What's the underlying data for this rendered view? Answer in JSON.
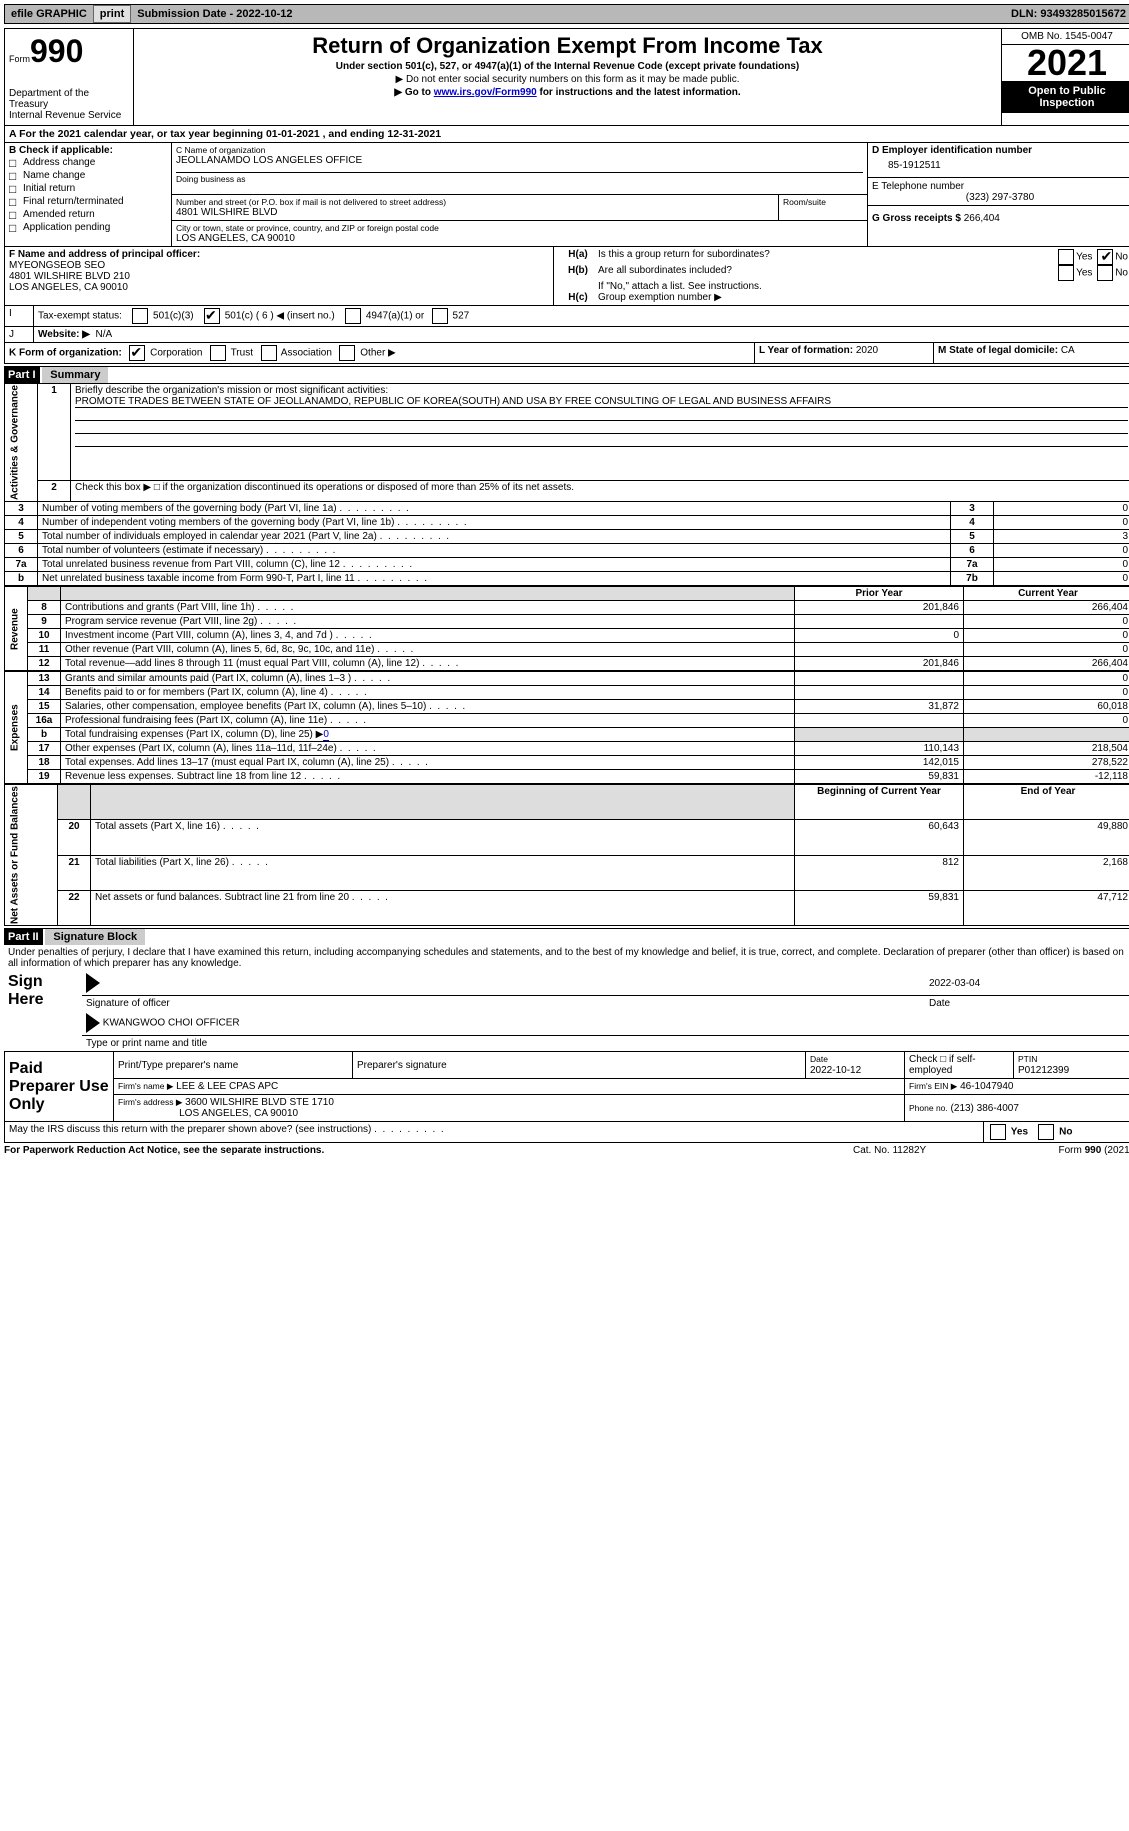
{
  "topbar": {
    "efile_label": "efile GRAPHIC",
    "print_btn": "print",
    "submission_label": "Submission Date - 2022-10-12",
    "dln": "DLN: 93493285015672"
  },
  "header": {
    "form_word": "Form",
    "form_number": "990",
    "dept1": "Department of the Treasury",
    "dept2": "Internal Revenue Service",
    "title": "Return of Organization Exempt From Income Tax",
    "subtitle": "Under section 501(c), 527, or 4947(a)(1) of the Internal Revenue Code (except private foundations)",
    "note1": "▶ Do not enter social security numbers on this form as it may be made public.",
    "note2_pre": "▶ Go to ",
    "note2_link": "www.irs.gov/Form990",
    "note2_post": " for instructions and the latest information.",
    "omb": "OMB No. 1545-0047",
    "year": "2021",
    "open_inspect": "Open to Public Inspection"
  },
  "line_a": "For the 2021 calendar year, or tax year beginning 01-01-2021   , and ending 12-31-2021",
  "section_b": {
    "header": "B Check if applicable:",
    "items": [
      "Address change",
      "Name change",
      "Initial return",
      "Final return/terminated",
      "Amended return",
      "Application pending"
    ]
  },
  "section_c": {
    "name_label": "C Name of organization",
    "name": "JEOLLANAMDO LOS ANGELES OFFICE",
    "dba_label": "Doing business as",
    "street_label": "Number and street (or P.O. box if mail is not delivered to street address)",
    "room_label": "Room/suite",
    "street": "4801 WILSHIRE BLVD",
    "city_label": "City or town, state or province, country, and ZIP or foreign postal code",
    "city": "LOS ANGELES, CA  90010"
  },
  "section_d": {
    "ein_label": "D Employer identification number",
    "ein": "85-1912511",
    "phone_label": "E Telephone number",
    "phone": "(323) 297-3780",
    "gross_label": "G Gross receipts $",
    "gross": "266,404"
  },
  "section_f": {
    "label": "F Name and address of principal officer:",
    "name": "MYEONGSEOB SEO",
    "addr1": "4801 WILSHIRE BLVD 210",
    "addr2": "LOS ANGELES, CA  90010"
  },
  "section_h": {
    "ha": "Is this a group return for subordinates?",
    "hb": "Are all subordinates included?",
    "hb_note": "If \"No,\" attach a list. See instructions.",
    "hc": "Group exemption number ▶",
    "ha_no_checked": true
  },
  "line_i": {
    "label": "Tax-exempt status:",
    "opt1": "501(c)(3)",
    "opt2_pre": "501(c) ( 6 ) ◀ (insert no.)",
    "opt3": "4947(a)(1) or",
    "opt4": "527",
    "opt2_checked": true
  },
  "line_j": {
    "label": "Website: ▶",
    "value": "N/A"
  },
  "line_k": {
    "label": "K Form of organization:",
    "corp": "Corporation",
    "trust": "Trust",
    "assoc": "Association",
    "other": "Other ▶",
    "corp_checked": true
  },
  "line_l": {
    "label": "L Year of formation:",
    "value": "2020"
  },
  "line_m": {
    "label": "M State of legal domicile:",
    "value": "CA"
  },
  "part1": {
    "bar": "Part I",
    "title": "Summary",
    "q1_label": "Briefly describe the organization's mission or most significant activities:",
    "q1_text": "PROMOTE TRADES BETWEEN STATE OF JEOLLANAMDO, REPUBLIC OF KOREA(SOUTH) AND USA BY FREE CONSULTING OF LEGAL AND BUSINESS AFFAIRS",
    "q2": "Check this box ▶ □ if the organization discontinued its operations or disposed of more than 25% of its net assets.",
    "side_ag": "Activities & Governance",
    "side_rev": "Revenue",
    "side_exp": "Expenses",
    "side_na": "Net Assets or Fund Balances",
    "prior_year": "Prior Year",
    "current_year": "Current Year",
    "beg_year": "Beginning of Current Year",
    "end_year": "End of Year",
    "rows_gov": [
      {
        "n": "3",
        "t": "Number of voting members of the governing body (Part VI, line 1a)",
        "box": "3",
        "v": "0"
      },
      {
        "n": "4",
        "t": "Number of independent voting members of the governing body (Part VI, line 1b)",
        "box": "4",
        "v": "0"
      },
      {
        "n": "5",
        "t": "Total number of individuals employed in calendar year 2021 (Part V, line 2a)",
        "box": "5",
        "v": "3"
      },
      {
        "n": "6",
        "t": "Total number of volunteers (estimate if necessary)",
        "box": "6",
        "v": "0"
      },
      {
        "n": "7a",
        "t": "Total unrelated business revenue from Part VIII, column (C), line 12",
        "box": "7a",
        "v": "0"
      },
      {
        "n": "b",
        "t": "Net unrelated business taxable income from Form 990-T, Part I, line 11",
        "box": "7b",
        "v": "0"
      }
    ],
    "rows_rev": [
      {
        "n": "8",
        "t": "Contributions and grants (Part VIII, line 1h)",
        "p": "201,846",
        "c": "266,404"
      },
      {
        "n": "9",
        "t": "Program service revenue (Part VIII, line 2g)",
        "p": "",
        "c": "0"
      },
      {
        "n": "10",
        "t": "Investment income (Part VIII, column (A), lines 3, 4, and 7d )",
        "p": "0",
        "c": "0"
      },
      {
        "n": "11",
        "t": "Other revenue (Part VIII, column (A), lines 5, 6d, 8c, 9c, 10c, and 11e)",
        "p": "",
        "c": "0"
      },
      {
        "n": "12",
        "t": "Total revenue—add lines 8 through 11 (must equal Part VIII, column (A), line 12)",
        "p": "201,846",
        "c": "266,404"
      }
    ],
    "rows_exp": [
      {
        "n": "13",
        "t": "Grants and similar amounts paid (Part IX, column (A), lines 1–3 )",
        "p": "",
        "c": "0"
      },
      {
        "n": "14",
        "t": "Benefits paid to or for members (Part IX, column (A), line 4)",
        "p": "",
        "c": "0"
      },
      {
        "n": "15",
        "t": "Salaries, other compensation, employee benefits (Part IX, column (A), lines 5–10)",
        "p": "31,872",
        "c": "60,018"
      },
      {
        "n": "16a",
        "t": "Professional fundraising fees (Part IX, column (A), line 11e)",
        "p": "",
        "c": "0"
      },
      {
        "n": "b",
        "t": "Total fundraising expenses (Part IX, column (D), line 25) ▶",
        "link": "0",
        "p": "shade",
        "c": "shade"
      },
      {
        "n": "17",
        "t": "Other expenses (Part IX, column (A), lines 11a–11d, 11f–24e)",
        "p": "110,143",
        "c": "218,504"
      },
      {
        "n": "18",
        "t": "Total expenses. Add lines 13–17 (must equal Part IX, column (A), line 25)",
        "p": "142,015",
        "c": "278,522"
      },
      {
        "n": "19",
        "t": "Revenue less expenses. Subtract line 18 from line 12",
        "p": "59,831",
        "c": "-12,118"
      }
    ],
    "rows_na": [
      {
        "n": "20",
        "t": "Total assets (Part X, line 16)",
        "p": "60,643",
        "c": "49,880"
      },
      {
        "n": "21",
        "t": "Total liabilities (Part X, line 26)",
        "p": "812",
        "c": "2,168"
      },
      {
        "n": "22",
        "t": "Net assets or fund balances. Subtract line 21 from line 20",
        "p": "59,831",
        "c": "47,712"
      }
    ]
  },
  "part2": {
    "bar": "Part II",
    "title": "Signature Block",
    "decl": "Under penalties of perjury, I declare that I have examined this return, including accompanying schedules and statements, and to the best of my knowledge and belief, it is true, correct, and complete. Declaration of preparer (other than officer) is based on all information of which preparer has any knowledge.",
    "sign_here": "Sign Here",
    "sig_officer": "Signature of officer",
    "sig_date": "2022-03-04",
    "date_label": "Date",
    "officer_name": "KWANGWOO CHOI  OFFICER",
    "type_name": "Type or print name and title",
    "paid_prep": "Paid Preparer Use Only",
    "prep_name_label": "Print/Type preparer's name",
    "prep_sig_label": "Preparer's signature",
    "prep_date_label": "Date",
    "prep_date": "2022-10-12",
    "self_emp": "Check □ if self-employed",
    "ptin_label": "PTIN",
    "ptin": "P01212399",
    "firm_name_label": "Firm's name    ▶",
    "firm_name": "LEE & LEE CPAS APC",
    "firm_ein_label": "Firm's EIN ▶",
    "firm_ein": "46-1047940",
    "firm_addr_label": "Firm's address ▶",
    "firm_addr1": "3600 WILSHIRE BLVD STE 1710",
    "firm_addr2": "LOS ANGELES, CA  90010",
    "firm_phone_label": "Phone no.",
    "firm_phone": "(213) 386-4007",
    "may_irs": "May the IRS discuss this return with the preparer shown above? (see instructions)"
  },
  "footer": {
    "pra": "For Paperwork Reduction Act Notice, see the separate instructions.",
    "cat": "Cat. No. 11282Y",
    "form": "Form 990 (2021)"
  }
}
